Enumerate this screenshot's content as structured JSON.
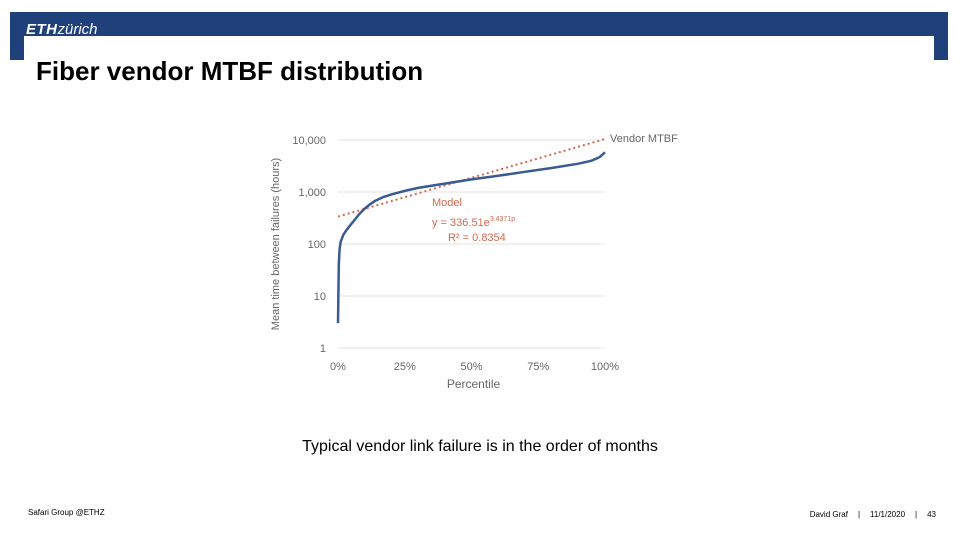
{
  "header": {
    "logo_eth": "ETH",
    "logo_zurich": "zürich"
  },
  "slide": {
    "title": "Fiber vendor MTBF distribution",
    "caption": "Typical vendor link failure is in the order of months"
  },
  "footer": {
    "left": "Safari Group @ETHZ",
    "author": "David Graf",
    "date": "11/1/2020",
    "page": "43",
    "separator": "|"
  },
  "colors": {
    "header": "#1f407a",
    "series": "#3a5a92",
    "model": "#d2694f",
    "grid": "#e3e3e3",
    "text": "#666666"
  },
  "chart_data": {
    "type": "line",
    "xlabel": "Percentile",
    "ylabel": "Mean time between failures (hours)",
    "xlim": [
      0,
      100
    ],
    "ylim": [
      1,
      10000
    ],
    "yscale": "log",
    "grid": true,
    "x_tick_labels": [
      "0%",
      "25%",
      "50%",
      "75%",
      "100%"
    ],
    "x_ticks": [
      0,
      25,
      50,
      75,
      100
    ],
    "y_tick_labels": [
      "1",
      "10",
      "100",
      "1,000",
      "10,000"
    ],
    "y_ticks": [
      1,
      10,
      100,
      1000,
      10000
    ],
    "series": [
      {
        "name": "Vendor MTBF",
        "x": [
          0,
          0.3,
          0.6,
          1,
          2,
          3,
          4,
          6,
          8,
          10,
          12,
          14,
          17,
          20,
          25,
          30,
          40,
          50,
          60,
          70,
          80,
          90,
          95,
          98,
          100
        ],
        "y": [
          3,
          40,
          80,
          110,
          150,
          180,
          210,
          280,
          380,
          480,
          580,
          680,
          800,
          900,
          1050,
          1200,
          1450,
          1750,
          2050,
          2450,
          2900,
          3500,
          4000,
          4700,
          5800
        ]
      }
    ],
    "model": {
      "name": "Model",
      "equation": "y = 336.51e",
      "exponent": "3.4371p",
      "r2_text": "R² = 0.8354",
      "a": 336.51,
      "b": 3.4371
    }
  }
}
